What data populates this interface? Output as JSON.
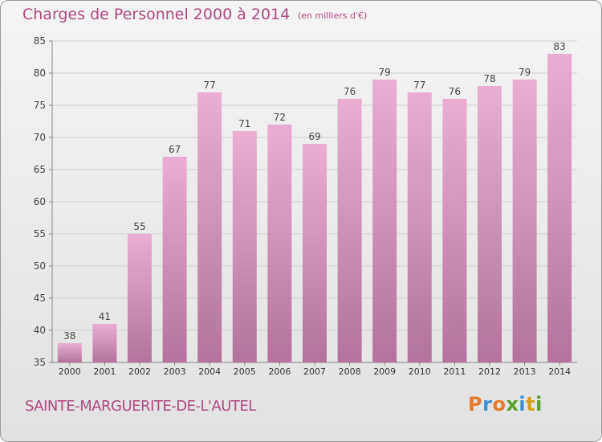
{
  "header": {
    "title": "Charges de Personnel 2000 à 2014",
    "unit": "(en milliers d'€)"
  },
  "footer": {
    "commune": "SAINTE-MARGUERITE-DE-L'AUTEL",
    "logo": {
      "letters": [
        "P",
        "r",
        "o",
        "x",
        "i",
        "t",
        "i"
      ],
      "colors": [
        "#e8792b",
        "#3a8fd0",
        "#e8792b",
        "#5aa02c",
        "#3a8fd0",
        "#d4a017",
        "#5aa02c"
      ]
    }
  },
  "colors": {
    "accent": "#b04a82",
    "bar_top": "#eaaed2",
    "bar_bottom": "#b3739c"
  },
  "chart_data": {
    "type": "bar",
    "title": "Charges de Personnel 2000 à 2014",
    "categories": [
      "2000",
      "2001",
      "2002",
      "2003",
      "2004",
      "2005",
      "2006",
      "2007",
      "2008",
      "2009",
      "2010",
      "2011",
      "2012",
      "2013",
      "2014"
    ],
    "values": [
      38,
      41,
      55,
      67,
      77,
      71,
      72,
      69,
      76,
      79,
      77,
      76,
      78,
      79,
      83
    ],
    "ylim": [
      35,
      85
    ],
    "yticks": [
      35,
      40,
      45,
      50,
      55,
      60,
      65,
      70,
      75,
      80,
      85
    ],
    "grid": true
  }
}
